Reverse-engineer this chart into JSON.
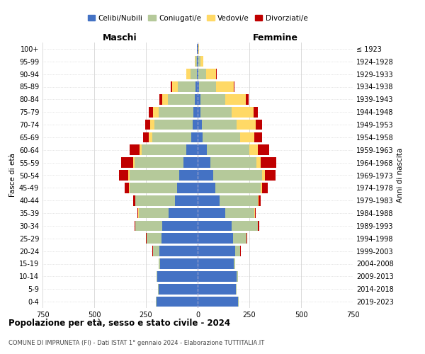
{
  "age_groups": [
    "0-4",
    "5-9",
    "10-14",
    "15-19",
    "20-24",
    "25-29",
    "30-34",
    "35-39",
    "40-44",
    "45-49",
    "50-54",
    "55-59",
    "60-64",
    "65-69",
    "70-74",
    "75-79",
    "80-84",
    "85-89",
    "90-94",
    "95-99",
    "100+"
  ],
  "birth_years": [
    "2019-2023",
    "2014-2018",
    "2009-2013",
    "2004-2008",
    "1999-2003",
    "1994-1998",
    "1989-1993",
    "1984-1988",
    "1979-1983",
    "1974-1978",
    "1969-1973",
    "1964-1968",
    "1959-1963",
    "1954-1958",
    "1949-1953",
    "1944-1948",
    "1939-1943",
    "1934-1938",
    "1929-1933",
    "1924-1928",
    "≤ 1923"
  ],
  "male": {
    "celibi": [
      200,
      190,
      195,
      180,
      185,
      175,
      170,
      140,
      110,
      100,
      90,
      70,
      55,
      30,
      25,
      20,
      15,
      10,
      5,
      2,
      2
    ],
    "coniugati": [
      2,
      2,
      5,
      10,
      30,
      70,
      130,
      145,
      190,
      230,
      240,
      235,
      215,
      190,
      185,
      170,
      130,
      85,
      30,
      8,
      2
    ],
    "vedovi": [
      0,
      0,
      0,
      0,
      1,
      1,
      1,
      1,
      2,
      3,
      5,
      5,
      10,
      15,
      20,
      25,
      25,
      30,
      20,
      5,
      0
    ],
    "divorziati": [
      0,
      0,
      0,
      0,
      2,
      3,
      5,
      5,
      10,
      20,
      45,
      60,
      50,
      30,
      25,
      20,
      15,
      5,
      0,
      0,
      0
    ]
  },
  "female": {
    "nubili": [
      195,
      185,
      190,
      175,
      180,
      170,
      165,
      135,
      105,
      85,
      75,
      60,
      45,
      25,
      20,
      15,
      12,
      8,
      5,
      2,
      2
    ],
    "coniugate": [
      2,
      2,
      4,
      8,
      25,
      65,
      125,
      140,
      185,
      220,
      235,
      225,
      205,
      180,
      170,
      150,
      120,
      80,
      35,
      10,
      3
    ],
    "vedove": [
      0,
      0,
      0,
      0,
      1,
      1,
      2,
      2,
      5,
      8,
      15,
      20,
      40,
      70,
      90,
      105,
      100,
      85,
      50,
      15,
      2
    ],
    "divorziate": [
      0,
      0,
      0,
      0,
      2,
      3,
      5,
      5,
      10,
      25,
      50,
      75,
      55,
      35,
      30,
      20,
      15,
      5,
      2,
      0,
      0
    ]
  },
  "colors": {
    "celibi": "#4472c4",
    "coniugati": "#b5c99a",
    "vedovi": "#ffd966",
    "divorziati": "#c00000"
  },
  "xlim": 750,
  "xlabel_left": "Maschi",
  "xlabel_right": "Femmine",
  "ylabel_left": "Fasce di età",
  "ylabel_right": "Anni di nascita",
  "title": "Popolazione per età, sesso e stato civile - 2024",
  "subtitle": "COMUNE DI IMPRUNETA (FI) - Dati ISTAT 1° gennaio 2024 - Elaborazione TUTTITALIA.IT",
  "legend_labels": [
    "Celibi/Nubili",
    "Coniugati/e",
    "Vedovi/e",
    "Divorziati/e"
  ],
  "background_color": "#ffffff",
  "grid_color": "#cccccc"
}
